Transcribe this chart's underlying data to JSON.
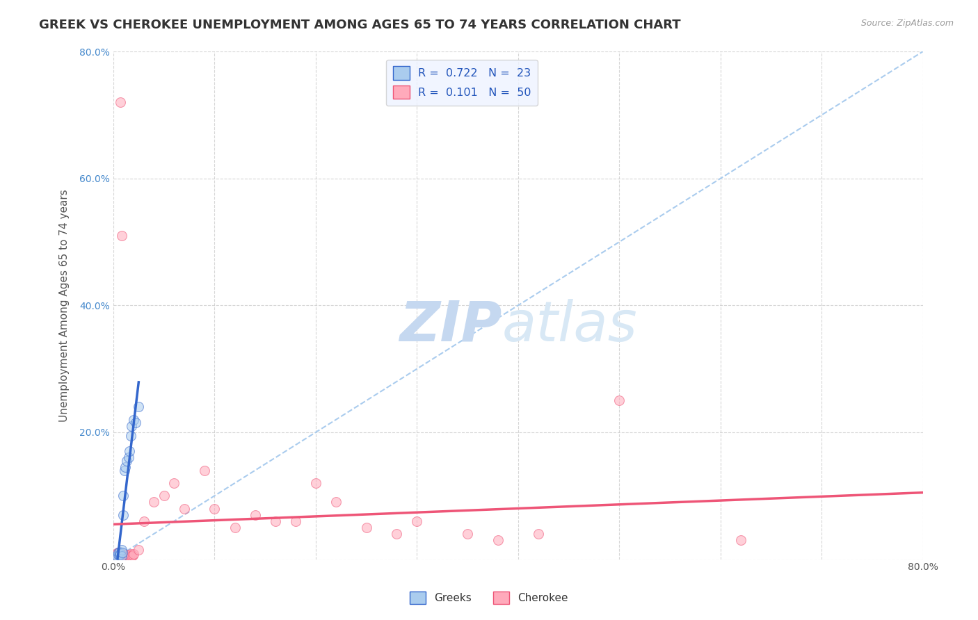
{
  "title": "GREEK VS CHEROKEE UNEMPLOYMENT AMONG AGES 65 TO 74 YEARS CORRELATION CHART",
  "source": "Source: ZipAtlas.com",
  "ylabel": "Unemployment Among Ages 65 to 74 years",
  "xlim": [
    0.0,
    0.8
  ],
  "ylim": [
    0.0,
    0.8
  ],
  "greek_R": 0.722,
  "greek_N": 23,
  "cherokee_R": 0.101,
  "cherokee_N": 50,
  "greek_color": "#aaccee",
  "cherokee_color": "#ffaabb",
  "greek_line_color": "#3366cc",
  "cherokee_line_color": "#ee5577",
  "diagonal_color": "#aaccee",
  "background_color": "#ffffff",
  "watermark_zip": "ZIP",
  "watermark_atlas": "atlas",
  "watermark_color": "#ddeeff",
  "legend_box_color": "#eef3ff",
  "greek_x": [
    0.002,
    0.003,
    0.004,
    0.005,
    0.005,
    0.006,
    0.006,
    0.007,
    0.008,
    0.008,
    0.009,
    0.01,
    0.01,
    0.011,
    0.012,
    0.013,
    0.015,
    0.016,
    0.017,
    0.018,
    0.02,
    0.022,
    0.025
  ],
  "greek_y": [
    0.003,
    0.005,
    0.004,
    0.007,
    0.01,
    0.006,
    0.012,
    0.008,
    0.015,
    0.005,
    0.01,
    0.07,
    0.1,
    0.14,
    0.145,
    0.155,
    0.16,
    0.17,
    0.195,
    0.21,
    0.22,
    0.215,
    0.24
  ],
  "cherokee_x": [
    0.001,
    0.002,
    0.003,
    0.003,
    0.004,
    0.004,
    0.005,
    0.005,
    0.006,
    0.006,
    0.007,
    0.007,
    0.008,
    0.008,
    0.009,
    0.009,
    0.01,
    0.01,
    0.011,
    0.012,
    0.013,
    0.014,
    0.015,
    0.016,
    0.017,
    0.018,
    0.019,
    0.02,
    0.025,
    0.03,
    0.04,
    0.05,
    0.06,
    0.07,
    0.09,
    0.1,
    0.12,
    0.14,
    0.16,
    0.18,
    0.2,
    0.22,
    0.25,
    0.28,
    0.3,
    0.35,
    0.38,
    0.42,
    0.5,
    0.62
  ],
  "cherokee_y": [
    0.005,
    0.003,
    0.006,
    0.008,
    0.004,
    0.01,
    0.005,
    0.008,
    0.003,
    0.007,
    0.006,
    0.72,
    0.003,
    0.51,
    0.005,
    0.004,
    0.006,
    0.008,
    0.005,
    0.007,
    0.004,
    0.006,
    0.007,
    0.005,
    0.008,
    0.005,
    0.006,
    0.008,
    0.015,
    0.06,
    0.09,
    0.1,
    0.12,
    0.08,
    0.14,
    0.08,
    0.05,
    0.07,
    0.06,
    0.06,
    0.12,
    0.09,
    0.05,
    0.04,
    0.06,
    0.04,
    0.03,
    0.04,
    0.25,
    0.03
  ],
  "marker_size": 100,
  "marker_alpha": 0.55,
  "title_fontsize": 13,
  "axis_label_fontsize": 11,
  "tick_fontsize": 10,
  "legend_fontsize": 11.5
}
